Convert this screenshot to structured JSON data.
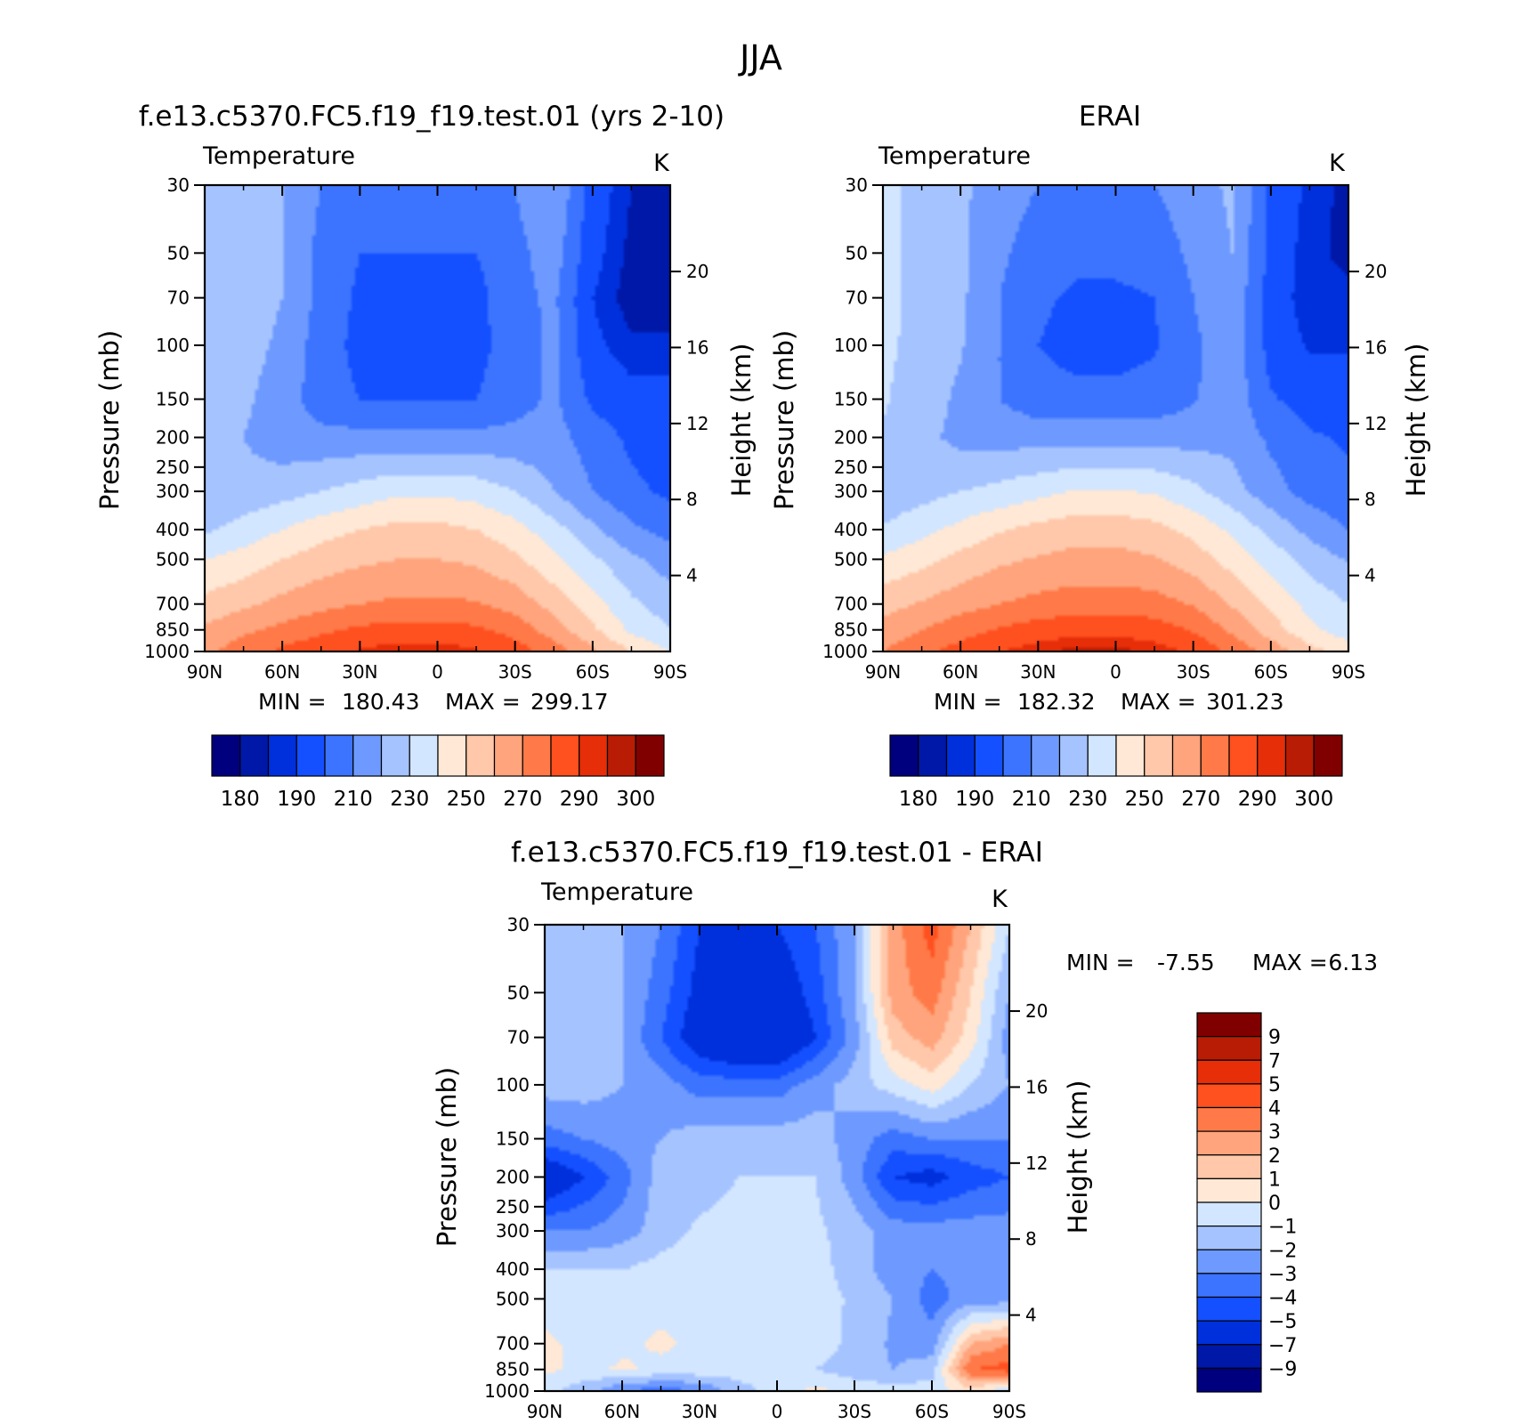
{
  "figure": {
    "title": "JJA"
  },
  "colors": {
    "abs_scale": [
      "#00007f",
      "#0018a8",
      "#0030dc",
      "#1450ff",
      "#3c74ff",
      "#6e9aff",
      "#a5c3ff",
      "#d2e6ff",
      "#ffe8d5",
      "#ffc8aa",
      "#ffa47c",
      "#ff7a48",
      "#ff5020",
      "#e62e08",
      "#b81c04",
      "#800000"
    ],
    "diff_scale": [
      "#00007f",
      "#0018a8",
      "#0030dc",
      "#1450ff",
      "#3c74ff",
      "#6e9aff",
      "#a5c3ff",
      "#d2e6ff",
      "#ffe8d5",
      "#ffc8aa",
      "#ffa47c",
      "#ff7a48",
      "#ff5020",
      "#e62e08",
      "#b81c04",
      "#800000"
    ]
  },
  "chart_data": [
    {
      "type": "heatmap",
      "id": "model",
      "case_title": "f.e13.c5370.FC5.f19_f19.test.01 (yrs 2-10)",
      "variable": "Temperature",
      "units": "K",
      "ylabel": "Pressure (mb)",
      "y2label": "Height (km)",
      "x_ticks": [
        "90N",
        "60N",
        "30N",
        "0",
        "30S",
        "60S",
        "90S"
      ],
      "x_ticks_lat": [
        90,
        60,
        30,
        0,
        -30,
        -60,
        -90
      ],
      "y_ticks": [
        30,
        50,
        70,
        100,
        150,
        200,
        250,
        300,
        400,
        500,
        700,
        850,
        1000
      ],
      "y2_ticks": [
        20,
        16,
        12,
        8,
        4
      ],
      "xlim": [
        90,
        -90
      ],
      "ylim": [
        30,
        1000
      ],
      "y_scale": "log",
      "stats": {
        "min_label": "MIN =",
        "min": "180.43",
        "max_label": "MAX =",
        "max": "299.17"
      },
      "colorbar": {
        "orientation": "horizontal",
        "labels": [
          "180",
          "190",
          "210",
          "230",
          "250",
          "270",
          "290",
          "300"
        ]
      },
      "field": {
        "lat": [
          90,
          75,
          60,
          45,
          30,
          15,
          0,
          -15,
          -30,
          -45,
          -60,
          -75,
          -90
        ],
        "pressure": [
          30,
          50,
          70,
          100,
          150,
          200,
          300,
          400,
          500,
          700,
          850,
          1000
        ],
        "values": [
          [
            230,
            225,
            220,
            210,
            205,
            205,
            205,
            205,
            210,
            220,
            195,
            185,
            180
          ],
          [
            230,
            225,
            220,
            207,
            200,
            200,
            200,
            200,
            207,
            215,
            193,
            183,
            181
          ],
          [
            230,
            225,
            220,
            207,
            198,
            195,
            195,
            197,
            207,
            212,
            190,
            182,
            182
          ],
          [
            229,
            224,
            218,
            205,
            197,
            195,
            194,
            197,
            205,
            212,
            192,
            186,
            186
          ],
          [
            228,
            222,
            215,
            205,
            200,
            199,
            199,
            200,
            206,
            212,
            198,
            193,
            193
          ],
          [
            226,
            220,
            214,
            213,
            213,
            213,
            213,
            213,
            213,
            214,
            205,
            198,
            196
          ],
          [
            220,
            223,
            226,
            230,
            234,
            238,
            238,
            236,
            230,
            220,
            210,
            202,
            198
          ],
          [
            228,
            234,
            240,
            246,
            250,
            253,
            253,
            250,
            244,
            234,
            222,
            212,
            206
          ],
          [
            240,
            244,
            250,
            255,
            258,
            260,
            260,
            258,
            252,
            242,
            232,
            222,
            215
          ],
          [
            253,
            258,
            263,
            267,
            270,
            272,
            272,
            271,
            266,
            256,
            244,
            232,
            225
          ],
          [
            262,
            268,
            273,
            278,
            282,
            284,
            284,
            282,
            276,
            265,
            252,
            238,
            230
          ],
          [
            268,
            275,
            282,
            287,
            291,
            294,
            294,
            291,
            285,
            275,
            262,
            250,
            240
          ]
        ]
      }
    },
    {
      "type": "heatmap",
      "id": "obs",
      "case_title": "ERAI",
      "variable": "Temperature",
      "units": "K",
      "ylabel": "Pressure (mb)",
      "y2label": "Height (km)",
      "x_ticks": [
        "90N",
        "60N",
        "30N",
        "0",
        "30S",
        "60S",
        "90S"
      ],
      "x_ticks_lat": [
        90,
        60,
        30,
        0,
        -30,
        -60,
        -90
      ],
      "y_ticks": [
        30,
        50,
        70,
        100,
        150,
        200,
        250,
        300,
        400,
        500,
        700,
        850,
        1000
      ],
      "y2_ticks": [
        20,
        16,
        12,
        8,
        4
      ],
      "xlim": [
        90,
        -90
      ],
      "ylim": [
        30,
        1000
      ],
      "y_scale": "log",
      "stats": {
        "min_label": "MIN =",
        "min": "182.32",
        "max_label": "MAX =",
        "max": "301.23"
      },
      "colorbar": {
        "orientation": "horizontal",
        "labels": [
          "180",
          "190",
          "210",
          "230",
          "250",
          "270",
          "290",
          "300"
        ]
      },
      "field": {
        "lat": [
          90,
          75,
          60,
          45,
          30,
          15,
          0,
          -15,
          -30,
          -45,
          -60,
          -75,
          -90
        ],
        "pressure": [
          30,
          50,
          70,
          100,
          150,
          200,
          300,
          400,
          500,
          700,
          850,
          1000
        ],
        "values": [
          [
            232,
            228,
            222,
            215,
            210,
            208,
            208,
            210,
            215,
            222,
            198,
            188,
            183
          ],
          [
            232,
            228,
            222,
            212,
            205,
            203,
            203,
            205,
            212,
            220,
            197,
            186,
            184
          ],
          [
            232,
            228,
            222,
            210,
            202,
            198,
            198,
            200,
            210,
            218,
            195,
            186,
            186
          ],
          [
            232,
            227,
            221,
            210,
            200,
            196,
            196,
            199,
            208,
            217,
            196,
            189,
            189
          ],
          [
            231,
            225,
            218,
            210,
            204,
            203,
            203,
            204,
            209,
            216,
            201,
            196,
            196
          ],
          [
            229,
            223,
            217,
            216,
            216,
            216,
            216,
            216,
            216,
            217,
            208,
            201,
            199
          ],
          [
            223,
            226,
            230,
            233,
            237,
            241,
            241,
            239,
            233,
            224,
            214,
            206,
            202
          ],
          [
            231,
            237,
            243,
            249,
            253,
            256,
            256,
            253,
            247,
            238,
            227,
            217,
            210
          ],
          [
            242,
            247,
            253,
            258,
            261,
            263,
            263,
            261,
            255,
            246,
            236,
            226,
            219
          ],
          [
            256,
            261,
            266,
            270,
            273,
            275,
            275,
            274,
            269,
            259,
            248,
            237,
            230
          ],
          [
            264,
            270,
            276,
            281,
            285,
            287,
            287,
            285,
            279,
            268,
            255,
            242,
            235
          ],
          [
            270,
            277,
            284,
            290,
            294,
            297,
            297,
            294,
            288,
            278,
            266,
            254,
            245
          ]
        ]
      }
    },
    {
      "type": "heatmap",
      "id": "diff",
      "case_title": "f.e13.c5370.FC5.f19_f19.test.01 - ERAI",
      "variable": "Temperature",
      "units": "K",
      "ylabel": "Pressure (mb)",
      "y2label": "Height (km)",
      "x_ticks": [
        "90N",
        "60N",
        "30N",
        "0",
        "30S",
        "60S",
        "90S"
      ],
      "x_ticks_lat": [
        90,
        60,
        30,
        0,
        -30,
        -60,
        -90
      ],
      "y_ticks": [
        30,
        50,
        70,
        100,
        150,
        200,
        250,
        300,
        400,
        500,
        700,
        850,
        1000
      ],
      "y2_ticks": [
        20,
        16,
        12,
        8,
        4
      ],
      "xlim": [
        90,
        -90
      ],
      "ylim": [
        30,
        1000
      ],
      "y_scale": "log",
      "stats": {
        "min_label": "MIN =",
        "min": "-7.55",
        "max_label": "MAX =",
        "max": "6.13"
      },
      "colorbar": {
        "orientation": "vertical",
        "labels": [
          "9",
          "7",
          "5",
          "4",
          "3",
          "2",
          "1",
          "0",
          "-1",
          "-2",
          "-3",
          "-4",
          "-5",
          "-7",
          "-9"
        ]
      },
      "field": {
        "lat": [
          90,
          75,
          60,
          45,
          30,
          15,
          0,
          -15,
          -30,
          -45,
          -60,
          -75,
          -90
        ],
        "pressure": [
          30,
          50,
          70,
          100,
          150,
          200,
          300,
          400,
          500,
          700,
          850,
          1000
        ],
        "values": [
          [
            -1.5,
            -1.5,
            -2,
            -3,
            -5,
            -5.5,
            -5,
            -4,
            -2,
            2.5,
            4.5,
            2,
            -1
          ],
          [
            -1.5,
            -2,
            -2,
            -3.5,
            -5.5,
            -6.5,
            -6,
            -4.5,
            -2,
            2.5,
            3.5,
            1,
            -2
          ],
          [
            -2,
            -1.5,
            -2,
            -4,
            -6,
            -7,
            -7,
            -5,
            -2.5,
            1.5,
            2.5,
            0.5,
            -2.5
          ],
          [
            -1.5,
            -1.5,
            -2,
            -2.5,
            -3.5,
            -3.5,
            -3.5,
            -2.5,
            -1.5,
            -0.5,
            0.5,
            -1,
            -2
          ],
          [
            -3.5,
            -3,
            -2.5,
            -2,
            -1.5,
            -1.5,
            -1.5,
            -1.5,
            -2.5,
            -3.5,
            -3,
            -3,
            -3
          ],
          [
            -6.5,
            -5,
            -3.5,
            -1.5,
            -1.5,
            -1,
            -1,
            -1,
            -2.5,
            -5,
            -5.5,
            -4.5,
            -4
          ],
          [
            -3,
            -3,
            -2.5,
            -1.5,
            -0.8,
            -0.6,
            -0.6,
            -0.8,
            -1.5,
            -2.5,
            -2.5,
            -2.5,
            -2.5
          ],
          [
            -1,
            -1,
            -1,
            -0.6,
            -0.5,
            -0.5,
            -0.5,
            -0.6,
            -1.5,
            -2.5,
            -3,
            -2.5,
            -2.5
          ],
          [
            -0.7,
            -0.6,
            -0.5,
            -0.4,
            -0.4,
            -0.4,
            -0.4,
            -0.5,
            -1.2,
            -2,
            -3.5,
            -2.5,
            -2.5
          ],
          [
            0.3,
            -0.4,
            -0.3,
            0.2,
            -0.3,
            -0.3,
            -0.4,
            -0.6,
            -1.2,
            -2.2,
            -2.5,
            2,
            3
          ],
          [
            0.3,
            -0.4,
            0.2,
            -0.3,
            -0.3,
            -0.4,
            -0.8,
            -1,
            -1.5,
            -2,
            -1.5,
            4,
            4.5
          ],
          [
            -0.8,
            -1.5,
            -3,
            -3.5,
            -3,
            -1.5,
            -0.5,
            0.3,
            -0.4,
            -0.5,
            -0.5,
            0.5,
            -1
          ]
        ]
      }
    }
  ]
}
